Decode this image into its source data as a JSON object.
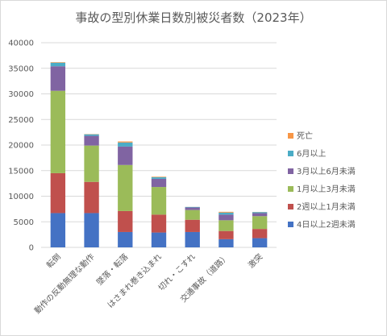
{
  "chart_data": {
    "type": "bar",
    "stacked": true,
    "title": "事故の型別休業日数別被災者数（2023年）",
    "xlabel": "",
    "ylabel": "",
    "ylim": [
      0,
      40000
    ],
    "yticks": [
      0,
      5000,
      10000,
      15000,
      20000,
      25000,
      30000,
      35000,
      40000
    ],
    "grid": true,
    "legend_position": "right",
    "categories": [
      "転倒",
      "動作の反動無理な動作",
      "墜落・転落",
      "はさまれ巻き込まれ",
      "切れ・こすれ",
      "交通事故（道路）",
      "激突"
    ],
    "series": [
      {
        "name": "4日以上2週未満",
        "color": "#4472C4",
        "values": [
          6700,
          6700,
          3000,
          2900,
          3000,
          1600,
          1800
        ]
      },
      {
        "name": "2週以上1月未満",
        "color": "#C0504D",
        "values": [
          7800,
          6100,
          4100,
          3500,
          2400,
          1600,
          1800
        ]
      },
      {
        "name": "1月以上3月未満",
        "color": "#9BBB59",
        "values": [
          16100,
          7100,
          9000,
          5400,
          1900,
          2100,
          2500
        ]
      },
      {
        "name": "3月以上6月未満",
        "color": "#8064A2",
        "values": [
          4800,
          1900,
          3600,
          1600,
          500,
          1100,
          600
        ]
      },
      {
        "name": "6月以上",
        "color": "#4BACC6",
        "values": [
          700,
          300,
          800,
          300,
          100,
          400,
          200
        ]
      },
      {
        "name": "死亡",
        "color": "#F79646",
        "values": [
          100,
          50,
          200,
          100,
          10,
          150,
          30
        ]
      }
    ]
  }
}
